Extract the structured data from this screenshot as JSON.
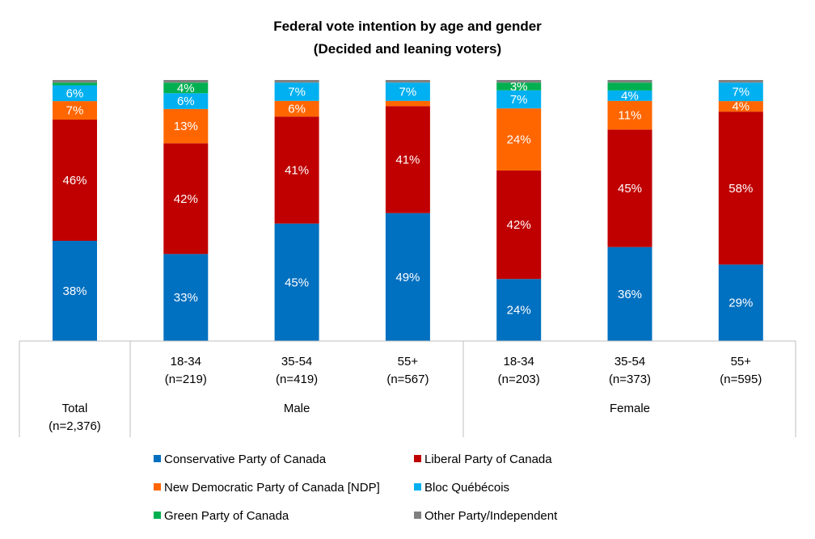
{
  "chart_data": {
    "type": "bar",
    "stacked": true,
    "title": "Federal vote intention by age and gender",
    "subtitle": "(Decided and leaning voters)",
    "groups": [
      {
        "label": "",
        "bars": [
          0
        ]
      },
      {
        "label": "Male",
        "bars": [
          1,
          2,
          3
        ]
      },
      {
        "label": "Female",
        "bars": [
          4,
          5,
          6
        ]
      }
    ],
    "categories": [
      {
        "line1": "Total",
        "line2": "(n=2,376)"
      },
      {
        "line1": "18-34",
        "line2": "(n=219)"
      },
      {
        "line1": "35-54",
        "line2": "(n=419)"
      },
      {
        "line1": "55+",
        "line2": "(n=567)"
      },
      {
        "line1": "18-34",
        "line2": "(n=203)"
      },
      {
        "line1": "35-54",
        "line2": "(n=373)"
      },
      {
        "line1": "55+",
        "line2": "(n=595)"
      }
    ],
    "series": [
      {
        "name": "Conservative Party of Canada",
        "color": "#0070C0",
        "label_color": "#FFFFFF",
        "values": [
          38,
          33,
          45,
          49,
          24,
          36,
          29
        ],
        "labels": [
          "38%",
          "33%",
          "45%",
          "49%",
          "24%",
          "36%",
          "29%"
        ]
      },
      {
        "name": "Liberal Party of Canada",
        "color": "#C00000",
        "label_color": "#FFFFFF",
        "values": [
          46,
          42,
          41,
          41,
          42,
          45,
          58
        ],
        "labels": [
          "46%",
          "42%",
          "41%",
          "41%",
          "42%",
          "45%",
          "58%"
        ]
      },
      {
        "name": "New Democratic Party of Canada [NDP]",
        "color": "#FF6600",
        "label_color": "#FFFFFF",
        "values": [
          7,
          13,
          6,
          2,
          24,
          11,
          4
        ],
        "labels": [
          "7%",
          "13%",
          "6%",
          "",
          "24%",
          "11%",
          "4%"
        ]
      },
      {
        "name": "Bloc Québécois",
        "color": "#00B0F0",
        "label_color": "#FFFFFF",
        "values": [
          6,
          6,
          7,
          7,
          7,
          4,
          7
        ],
        "labels": [
          "6%",
          "6%",
          "7%",
          "7%",
          "7%",
          "4%",
          "7%"
        ]
      },
      {
        "name": "Green Party of Canada",
        "color": "#00B050",
        "label_color": "#FFFFFF",
        "values": [
          1,
          4,
          0,
          0,
          3,
          3,
          0
        ],
        "labels": [
          "",
          "4%",
          "",
          "",
          "3%",
          "",
          ""
        ]
      },
      {
        "name": "Other Party/Independent",
        "color": "#808080",
        "label_color": "#FFFFFF",
        "values": [
          1,
          1,
          1,
          1,
          1,
          1,
          1
        ],
        "labels": [
          "",
          "",
          "",
          "",
          "",
          "",
          ""
        ]
      }
    ],
    "ylim": [
      0,
      100
    ],
    "grid": false,
    "legend_position": "bottom"
  }
}
